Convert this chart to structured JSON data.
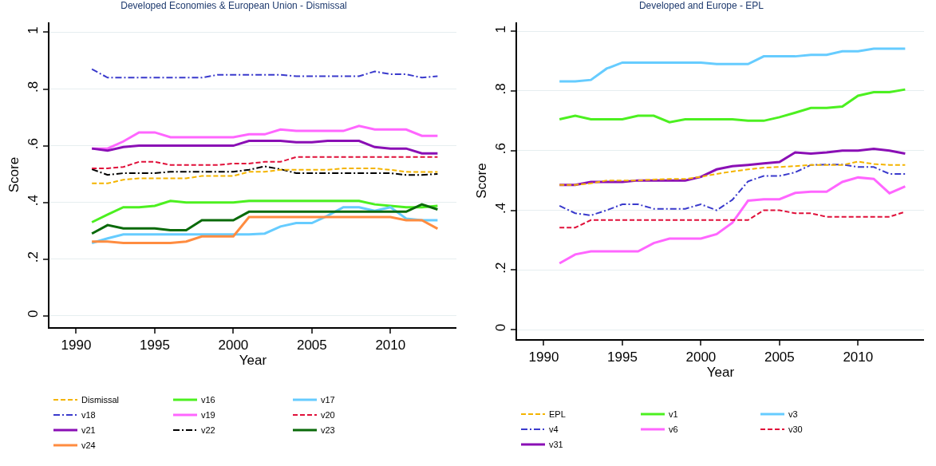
{
  "chart_data": [
    {
      "type": "line",
      "title": "Developed Economies & European Union - Dismissal",
      "xlabel": "Year",
      "ylabel": "Score",
      "x": [
        1991,
        1992,
        1993,
        1994,
        1995,
        1996,
        1997,
        1998,
        1999,
        2000,
        2001,
        2002,
        2003,
        2004,
        2005,
        2006,
        2007,
        2008,
        2009,
        2010,
        2011,
        2012,
        2013
      ],
      "xlim": [
        1988.3,
        2014.2
      ],
      "xticks": [
        1990,
        1995,
        2000,
        2005,
        2010
      ],
      "ylim": [
        -0.04,
        1.035
      ],
      "yticks": [
        {
          "value": 0,
          "label": "0"
        },
        {
          "value": 0.2,
          "label": ".2"
        },
        {
          "value": 0.4,
          "label": ".4"
        },
        {
          "value": 0.6,
          "label": ".6"
        },
        {
          "value": 0.8,
          "label": ".8"
        },
        {
          "value": 1,
          "label": "1"
        }
      ],
      "grid": "y",
      "legend": "bottom",
      "series": [
        {
          "name": "Dismissal",
          "color": "#f4b400",
          "line_style": "dashed",
          "values": [
            0.467,
            0.467,
            0.48,
            0.485,
            0.485,
            0.485,
            0.485,
            0.493,
            0.493,
            0.493,
            0.508,
            0.508,
            0.515,
            0.515,
            0.515,
            0.515,
            0.52,
            0.52,
            0.52,
            0.515,
            0.508,
            0.507,
            0.507
          ]
        },
        {
          "name": "v16",
          "color": "#4cf020",
          "line_style": "solid",
          "values": [
            0.33,
            0.357,
            0.383,
            0.383,
            0.388,
            0.405,
            0.4,
            0.4,
            0.4,
            0.4,
            0.405,
            0.405,
            0.405,
            0.405,
            0.405,
            0.405,
            0.405,
            0.405,
            0.393,
            0.388,
            0.383,
            0.383,
            0.388
          ]
        },
        {
          "name": "v17",
          "color": "#66ccff",
          "line_style": "solid",
          "values": [
            0.257,
            0.273,
            0.287,
            0.287,
            0.287,
            0.287,
            0.287,
            0.287,
            0.287,
            0.287,
            0.287,
            0.29,
            0.315,
            0.327,
            0.327,
            0.353,
            0.383,
            0.383,
            0.37,
            0.383,
            0.343,
            0.337,
            0.337
          ]
        },
        {
          "name": "v18",
          "color": "#3a3acc",
          "line_style": "dashdot",
          "values": [
            0.87,
            0.84,
            0.84,
            0.84,
            0.84,
            0.84,
            0.84,
            0.84,
            0.85,
            0.85,
            0.85,
            0.85,
            0.85,
            0.845,
            0.845,
            0.845,
            0.845,
            0.845,
            0.862,
            0.852,
            0.852,
            0.84,
            0.845
          ]
        },
        {
          "name": "v19",
          "color": "#ff66ff",
          "line_style": "solid",
          "values": [
            0.59,
            0.59,
            0.615,
            0.647,
            0.647,
            0.63,
            0.63,
            0.63,
            0.63,
            0.63,
            0.64,
            0.64,
            0.657,
            0.652,
            0.652,
            0.652,
            0.652,
            0.67,
            0.657,
            0.657,
            0.657,
            0.635,
            0.635
          ]
        },
        {
          "name": "v20",
          "color": "#e0103a",
          "line_style": "dashed",
          "values": [
            0.52,
            0.52,
            0.525,
            0.543,
            0.543,
            0.532,
            0.532,
            0.532,
            0.532,
            0.537,
            0.537,
            0.543,
            0.543,
            0.56,
            0.56,
            0.56,
            0.56,
            0.56,
            0.56,
            0.56,
            0.56,
            0.56,
            0.56
          ]
        },
        {
          "name": "v21",
          "color": "#8a0fb5",
          "line_style": "solid",
          "values": [
            0.59,
            0.583,
            0.595,
            0.6,
            0.6,
            0.6,
            0.6,
            0.6,
            0.6,
            0.6,
            0.617,
            0.617,
            0.617,
            0.612,
            0.612,
            0.617,
            0.617,
            0.617,
            0.595,
            0.59,
            0.59,
            0.573,
            0.573
          ]
        },
        {
          "name": "v22",
          "color": "#000000",
          "line_style": "dashdot",
          "values": [
            0.517,
            0.497,
            0.503,
            0.503,
            0.503,
            0.508,
            0.508,
            0.508,
            0.508,
            0.508,
            0.515,
            0.527,
            0.517,
            0.503,
            0.503,
            0.503,
            0.503,
            0.503,
            0.503,
            0.503,
            0.497,
            0.497,
            0.5
          ]
        },
        {
          "name": "v23",
          "color": "#0a6a0a",
          "line_style": "solid",
          "values": [
            0.29,
            0.32,
            0.308,
            0.308,
            0.308,
            0.302,
            0.302,
            0.337,
            0.337,
            0.337,
            0.367,
            0.367,
            0.367,
            0.367,
            0.367,
            0.367,
            0.367,
            0.367,
            0.367,
            0.367,
            0.367,
            0.393,
            0.375
          ]
        },
        {
          "name": "v24",
          "color": "#ff8c40",
          "line_style": "solid",
          "values": [
            0.262,
            0.262,
            0.257,
            0.257,
            0.257,
            0.257,
            0.262,
            0.28,
            0.28,
            0.28,
            0.348,
            0.348,
            0.348,
            0.348,
            0.348,
            0.348,
            0.348,
            0.348,
            0.348,
            0.348,
            0.337,
            0.337,
            0.307
          ]
        }
      ]
    },
    {
      "type": "line",
      "title": "Developed and Europe - EPL",
      "xlabel": "Year",
      "ylabel": "Score",
      "x": [
        1991,
        1992,
        1993,
        1994,
        1995,
        1996,
        1997,
        1998,
        1999,
        2000,
        2001,
        2002,
        2003,
        2004,
        2005,
        2006,
        2007,
        2008,
        2009,
        2010,
        2011,
        2012,
        2013
      ],
      "xlim": [
        1988.3,
        2014.2
      ],
      "xticks": [
        1990,
        1995,
        2000,
        2005,
        2010
      ],
      "ylim": [
        -0.032,
        1.03
      ],
      "yticks": [
        {
          "value": 0,
          "label": "0"
        },
        {
          "value": 0.2,
          "label": ".2"
        },
        {
          "value": 0.4,
          "label": ".4"
        },
        {
          "value": 0.6,
          "label": ".6"
        },
        {
          "value": 0.8,
          "label": ".8"
        },
        {
          "value": 1,
          "label": "1"
        }
      ],
      "grid": "y",
      "legend": "bottom",
      "series": [
        {
          "name": "EPL",
          "color": "#f4b400",
          "line_style": "dashed",
          "values": [
            0.485,
            0.485,
            0.49,
            0.5,
            0.5,
            0.5,
            0.503,
            0.505,
            0.505,
            0.512,
            0.522,
            0.53,
            0.537,
            0.543,
            0.545,
            0.548,
            0.552,
            0.552,
            0.552,
            0.563,
            0.555,
            0.552,
            0.552
          ]
        },
        {
          "name": "v1",
          "color": "#4cf020",
          "line_style": "solid",
          "values": [
            0.705,
            0.717,
            0.705,
            0.705,
            0.705,
            0.717,
            0.717,
            0.695,
            0.705,
            0.705,
            0.705,
            0.705,
            0.7,
            0.7,
            0.712,
            0.727,
            0.743,
            0.743,
            0.748,
            0.784,
            0.796,
            0.796,
            0.805
          ]
        },
        {
          "name": "v3",
          "color": "#66ccff",
          "line_style": "solid",
          "values": [
            0.832,
            0.832,
            0.837,
            0.875,
            0.895,
            0.895,
            0.895,
            0.895,
            0.895,
            0.895,
            0.89,
            0.89,
            0.89,
            0.916,
            0.916,
            0.916,
            0.921,
            0.921,
            0.933,
            0.933,
            0.942,
            0.942,
            0.942
          ]
        },
        {
          "name": "v4",
          "color": "#3a3acc",
          "line_style": "dashdot",
          "values": [
            0.415,
            0.39,
            0.383,
            0.4,
            0.42,
            0.42,
            0.405,
            0.405,
            0.405,
            0.42,
            0.4,
            0.435,
            0.497,
            0.515,
            0.515,
            0.527,
            0.552,
            0.553,
            0.553,
            0.545,
            0.545,
            0.522,
            0.522
          ]
        },
        {
          "name": "v6",
          "color": "#ff66ff",
          "line_style": "solid",
          "values": [
            0.222,
            0.252,
            0.262,
            0.262,
            0.262,
            0.262,
            0.29,
            0.305,
            0.305,
            0.305,
            0.32,
            0.358,
            0.432,
            0.437,
            0.437,
            0.458,
            0.462,
            0.462,
            0.495,
            0.51,
            0.505,
            0.457,
            0.48
          ]
        },
        {
          "name": "v30",
          "color": "#e0103a",
          "line_style": "dashed",
          "values": [
            0.342,
            0.342,
            0.367,
            0.367,
            0.367,
            0.367,
            0.367,
            0.367,
            0.367,
            0.367,
            0.367,
            0.367,
            0.367,
            0.4,
            0.4,
            0.39,
            0.39,
            0.378,
            0.378,
            0.378,
            0.378,
            0.378,
            0.395
          ]
        },
        {
          "name": "v31",
          "color": "#8a0fb5",
          "line_style": "solid",
          "values": [
            0.485,
            0.485,
            0.495,
            0.495,
            0.495,
            0.5,
            0.5,
            0.5,
            0.5,
            0.512,
            0.537,
            0.548,
            0.552,
            0.557,
            0.562,
            0.594,
            0.59,
            0.594,
            0.6,
            0.6,
            0.606,
            0.6,
            0.59
          ]
        }
      ]
    }
  ]
}
